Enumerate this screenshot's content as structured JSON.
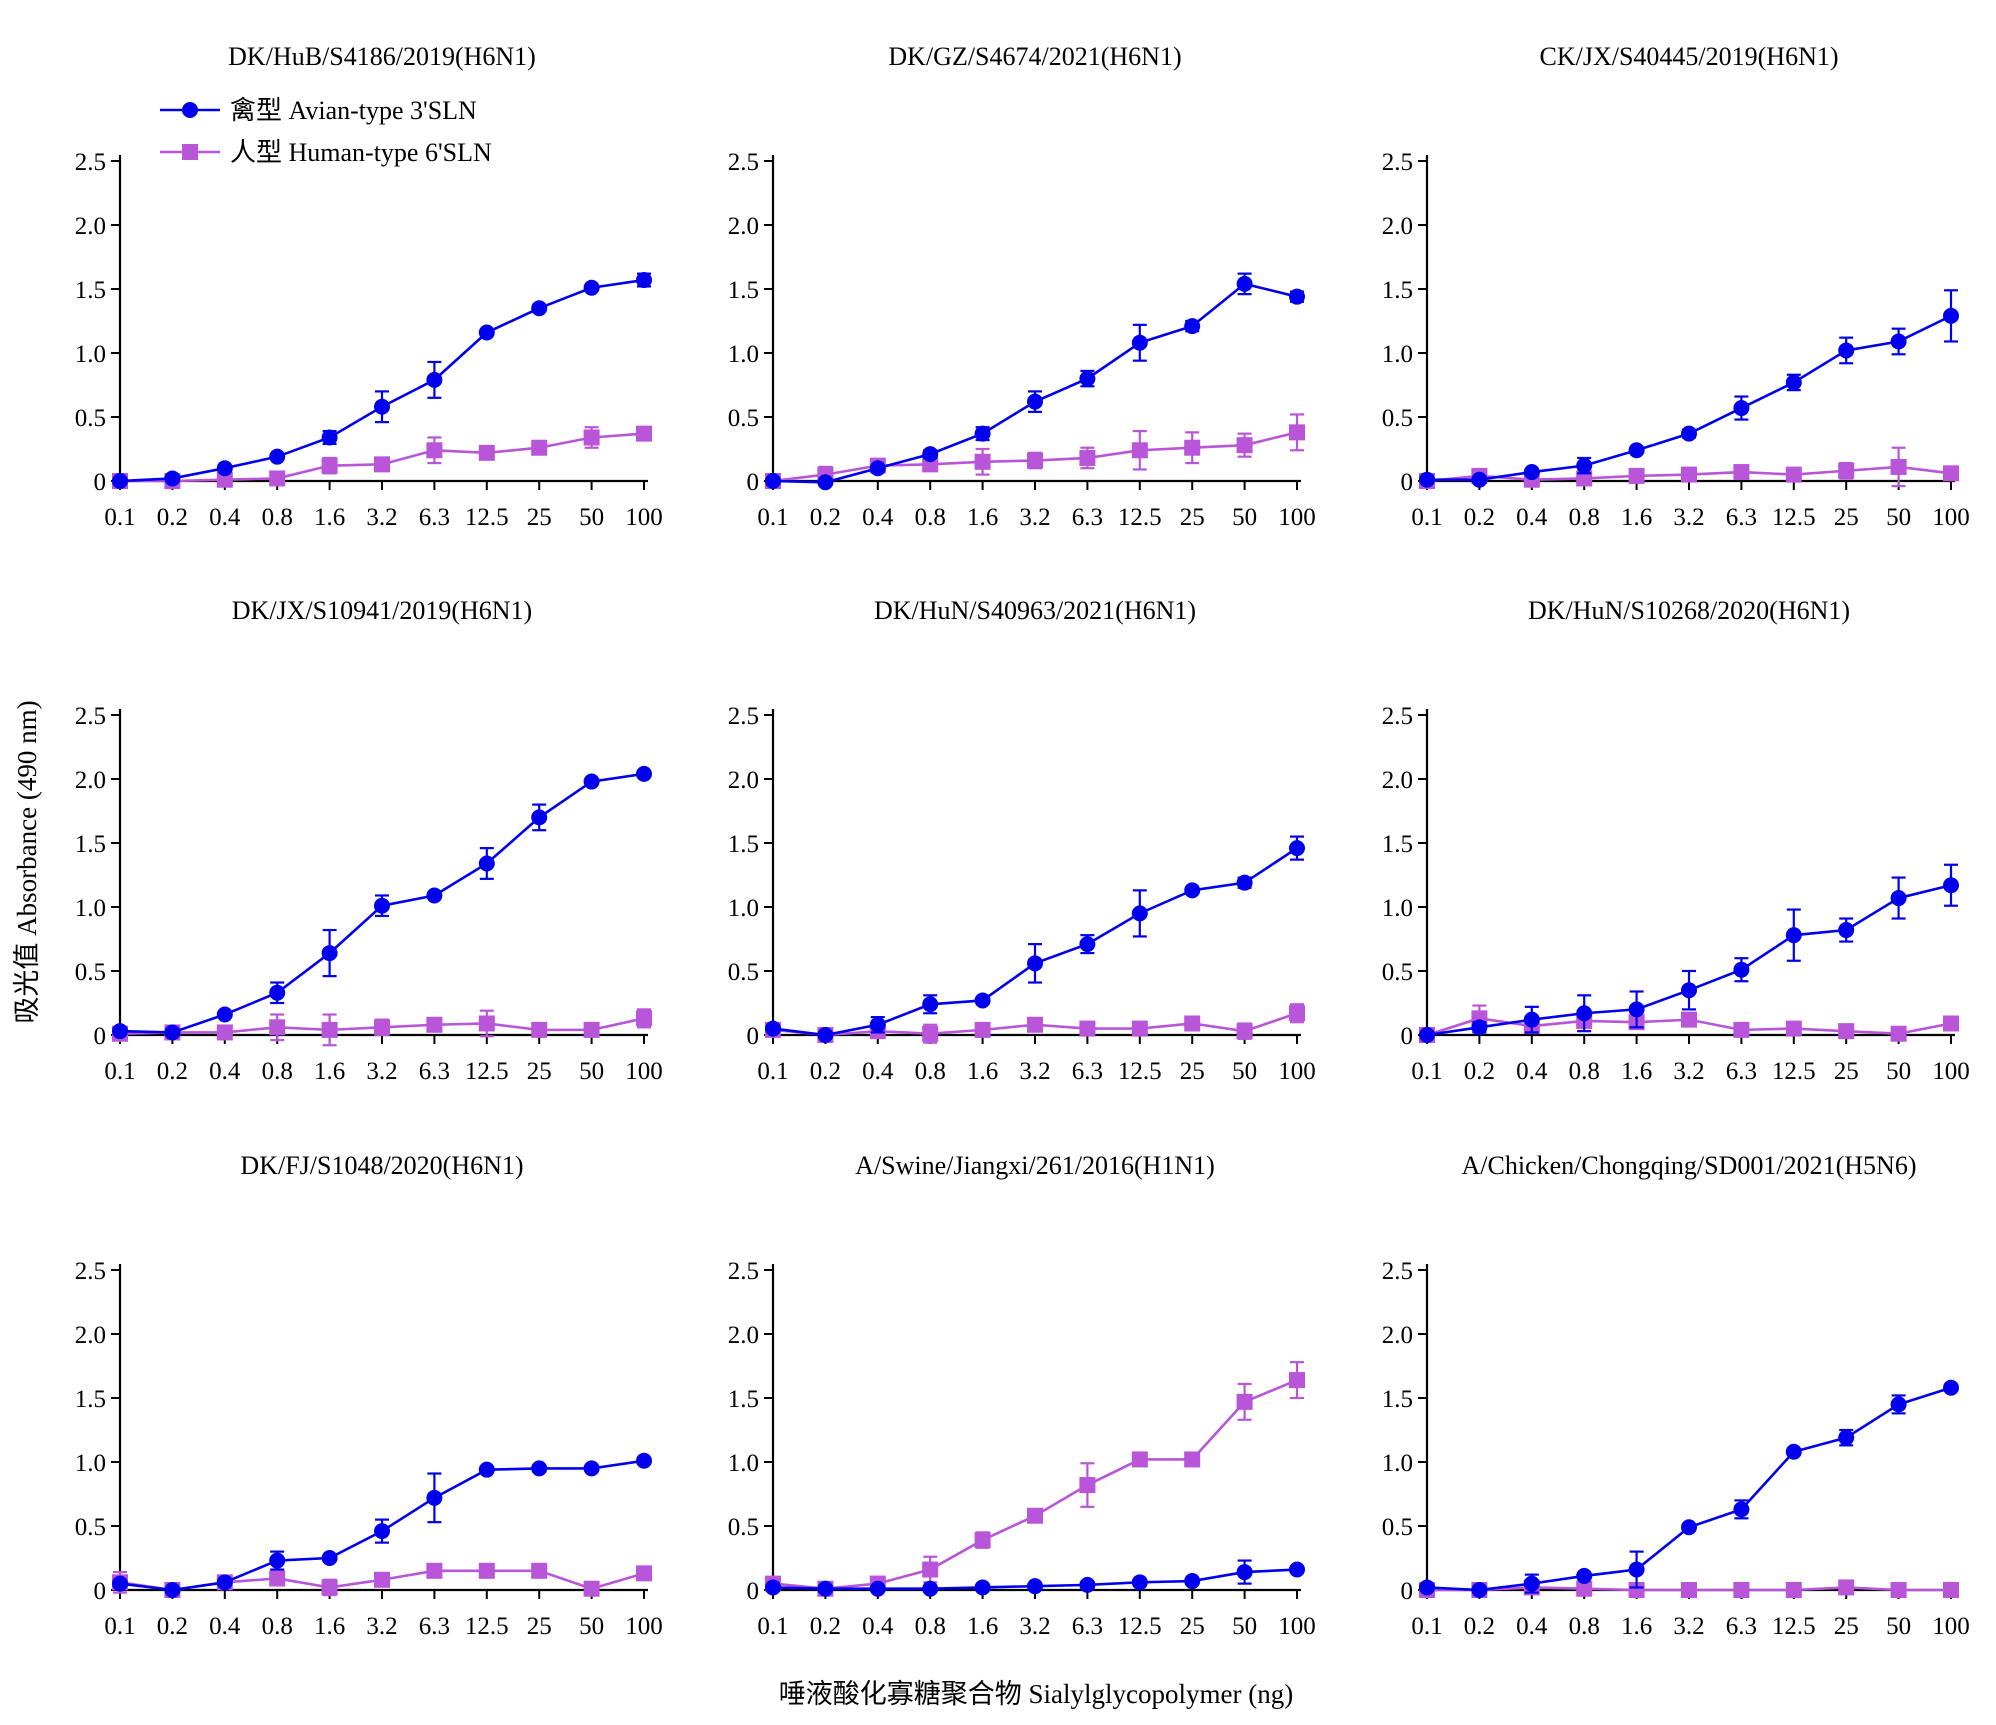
{
  "figure": {
    "ylabel": "吸光值 Absorbance (490 nm)",
    "xlabel": "唾液酸化寡糖聚合物 Sialylglycopolymer (ng)"
  },
  "legend": [
    {
      "label": "禽型 Avian-type 3'SLN",
      "color": "#0000ee",
      "marker": "circle"
    },
    {
      "label": "人型 Human-type 6'SLN",
      "color": "#b855d8",
      "marker": "square"
    }
  ],
  "chart_data": [
    {
      "type": "line",
      "title": "DK/HuB/S4186/2019(H6N1)",
      "categories": [
        "0.1",
        "0.2",
        "0.4",
        "0.8",
        "1.6",
        "3.2",
        "6.3",
        "12.5",
        "25",
        "50",
        "100"
      ],
      "ylim": [
        0,
        2.5
      ],
      "yticks": [
        "0",
        "0.5",
        "1.0",
        "1.5",
        "2.0",
        "2.5"
      ],
      "series": [
        {
          "name": "禽型 Avian-type 3'SLN",
          "values": [
            0.0,
            0.02,
            0.1,
            0.19,
            0.34,
            0.58,
            0.79,
            1.16,
            1.35,
            1.51,
            1.57
          ],
          "err": [
            0.01,
            0.01,
            0.02,
            0.02,
            0.05,
            0.12,
            0.14,
            0.02,
            0.02,
            0.02,
            0.05
          ]
        },
        {
          "name": "人型 Human-type 6'SLN",
          "values": [
            0.0,
            0.0,
            0.01,
            0.02,
            0.12,
            0.13,
            0.24,
            0.22,
            0.26,
            0.34,
            0.37
          ],
          "err": [
            0.01,
            0.01,
            0.01,
            0.02,
            0.06,
            0.04,
            0.1,
            0.03,
            0.03,
            0.08,
            0.03
          ]
        }
      ]
    },
    {
      "type": "line",
      "title": "DK/GZ/S4674/2021(H6N1)",
      "categories": [
        "0.1",
        "0.2",
        "0.4",
        "0.8",
        "1.6",
        "3.2",
        "6.3",
        "12.5",
        "25",
        "50",
        "100"
      ],
      "ylim": [
        0,
        2.5
      ],
      "yticks": [
        "0",
        "0.5",
        "1.0",
        "1.5",
        "2.0",
        "2.5"
      ],
      "series": [
        {
          "name": "禽型 Avian-type 3'SLN",
          "values": [
            0.0,
            -0.01,
            0.1,
            0.21,
            0.37,
            0.62,
            0.8,
            1.08,
            1.21,
            1.54,
            1.44
          ],
          "err": [
            0.01,
            0.01,
            0.02,
            0.03,
            0.05,
            0.08,
            0.06,
            0.14,
            0.04,
            0.08,
            0.04
          ]
        },
        {
          "name": "人型 Human-type 6'SLN",
          "values": [
            0.0,
            0.05,
            0.12,
            0.13,
            0.15,
            0.16,
            0.18,
            0.24,
            0.26,
            0.28,
            0.38
          ],
          "err": [
            0.01,
            0.06,
            0.03,
            0.04,
            0.1,
            0.06,
            0.08,
            0.15,
            0.12,
            0.09,
            0.14
          ]
        }
      ]
    },
    {
      "type": "line",
      "title": "CK/JX/S40445/2019(H6N1)",
      "categories": [
        "0.1",
        "0.2",
        "0.4",
        "0.8",
        "1.6",
        "3.2",
        "6.3",
        "12.5",
        "25",
        "50",
        "100"
      ],
      "ylim": [
        0,
        2.5
      ],
      "yticks": [
        "0",
        "0.5",
        "1.0",
        "1.5",
        "2.0",
        "2.5"
      ],
      "series": [
        {
          "name": "禽型 Avian-type 3'SLN",
          "values": [
            0.01,
            0.01,
            0.07,
            0.12,
            0.24,
            0.37,
            0.57,
            0.77,
            1.02,
            1.09,
            1.29
          ],
          "err": [
            0.01,
            0.01,
            0.02,
            0.06,
            0.02,
            0.03,
            0.09,
            0.06,
            0.1,
            0.1,
            0.2
          ]
        },
        {
          "name": "人型 Human-type 6'SLN",
          "values": [
            0.0,
            0.04,
            0.01,
            0.02,
            0.04,
            0.05,
            0.07,
            0.05,
            0.08,
            0.11,
            0.06
          ],
          "err": [
            0.01,
            0.02,
            0.01,
            0.02,
            0.02,
            0.03,
            0.03,
            0.03,
            0.06,
            0.15,
            0.03
          ]
        }
      ]
    },
    {
      "type": "line",
      "title": "DK/JX/S10941/2019(H6N1)",
      "categories": [
        "0.1",
        "0.2",
        "0.4",
        "0.8",
        "1.6",
        "3.2",
        "6.3",
        "12.5",
        "25",
        "50",
        "100"
      ],
      "ylim": [
        0,
        2.5
      ],
      "yticks": [
        "0",
        "0.5",
        "1.0",
        "1.5",
        "2.0",
        "2.5"
      ],
      "series": [
        {
          "name": "禽型 Avian-type 3'SLN",
          "values": [
            0.03,
            0.02,
            0.16,
            0.33,
            0.64,
            1.01,
            1.09,
            1.34,
            1.7,
            1.98,
            2.04
          ],
          "err": [
            0.02,
            0.01,
            0.02,
            0.08,
            0.18,
            0.08,
            0.02,
            0.12,
            0.1,
            0.02,
            0.02
          ]
        },
        {
          "name": "人型 Human-type 6'SLN",
          "values": [
            0.01,
            0.02,
            0.02,
            0.06,
            0.04,
            0.06,
            0.08,
            0.09,
            0.04,
            0.04,
            0.13
          ],
          "err": [
            0.02,
            0.02,
            0.02,
            0.1,
            0.12,
            0.06,
            0.05,
            0.1,
            0.02,
            0.03,
            0.07
          ]
        }
      ]
    },
    {
      "type": "line",
      "title": "DK/HuN/S40963/2021(H6N1)",
      "categories": [
        "0.1",
        "0.2",
        "0.4",
        "0.8",
        "1.6",
        "3.2",
        "6.3",
        "12.5",
        "25",
        "50",
        "100"
      ],
      "ylim": [
        0,
        2.5
      ],
      "yticks": [
        "0",
        "0.5",
        "1.0",
        "1.5",
        "2.0",
        "2.5"
      ],
      "series": [
        {
          "name": "禽型 Avian-type 3'SLN",
          "values": [
            0.05,
            0.0,
            0.08,
            0.24,
            0.27,
            0.56,
            0.71,
            0.95,
            1.13,
            1.19,
            1.46
          ],
          "err": [
            0.02,
            0.01,
            0.06,
            0.07,
            0.02,
            0.15,
            0.07,
            0.18,
            0.02,
            0.04,
            0.09
          ]
        },
        {
          "name": "人型 Human-type 6'SLN",
          "values": [
            0.04,
            0.0,
            0.03,
            0.01,
            0.04,
            0.08,
            0.05,
            0.05,
            0.09,
            0.03,
            0.17
          ],
          "err": [
            0.02,
            0.01,
            0.02,
            0.07,
            0.03,
            0.03,
            0.02,
            0.02,
            0.03,
            0.06,
            0.07
          ]
        }
      ]
    },
    {
      "type": "line",
      "title": "DK/HuN/S10268/2020(H6N1)",
      "categories": [
        "0.1",
        "0.2",
        "0.4",
        "0.8",
        "1.6",
        "3.2",
        "6.3",
        "12.5",
        "25",
        "50",
        "100"
      ],
      "ylim": [
        0,
        2.5
      ],
      "yticks": [
        "0",
        "0.5",
        "1.0",
        "1.5",
        "2.0",
        "2.5"
      ],
      "series": [
        {
          "name": "禽型 Avian-type 3'SLN",
          "values": [
            0.0,
            0.06,
            0.12,
            0.17,
            0.2,
            0.35,
            0.51,
            0.78,
            0.82,
            1.07,
            1.17
          ],
          "err": [
            0.01,
            0.04,
            0.1,
            0.14,
            0.14,
            0.15,
            0.09,
            0.2,
            0.09,
            0.16,
            0.16
          ]
        },
        {
          "name": "人型 Human-type 6'SLN",
          "values": [
            0.0,
            0.13,
            0.07,
            0.11,
            0.1,
            0.12,
            0.04,
            0.05,
            0.03,
            0.01,
            0.09
          ],
          "err": [
            0.01,
            0.1,
            0.05,
            0.04,
            0.05,
            0.04,
            0.03,
            0.03,
            0.03,
            0.03,
            0.04
          ]
        }
      ]
    },
    {
      "type": "line",
      "title": "DK/FJ/S1048/2020(H6N1)",
      "categories": [
        "0.1",
        "0.2",
        "0.4",
        "0.8",
        "1.6",
        "3.2",
        "6.3",
        "12.5",
        "25",
        "50",
        "100"
      ],
      "ylim": [
        0,
        2.5
      ],
      "yticks": [
        "0",
        "0.5",
        "1.0",
        "1.5",
        "2.0",
        "2.5"
      ],
      "series": [
        {
          "name": "禽型 Avian-type 3'SLN",
          "values": [
            0.05,
            0.0,
            0.06,
            0.23,
            0.25,
            0.46,
            0.72,
            0.94,
            0.95,
            0.95,
            1.01
          ],
          "err": [
            0.01,
            0.01,
            0.02,
            0.07,
            0.02,
            0.09,
            0.19,
            0.02,
            0.02,
            0.02,
            0.02
          ]
        },
        {
          "name": "人型 Human-type 6'SLN",
          "values": [
            0.06,
            0.0,
            0.06,
            0.09,
            0.02,
            0.08,
            0.15,
            0.15,
            0.15,
            0.01,
            0.13
          ],
          "err": [
            0.08,
            0.01,
            0.02,
            0.04,
            0.06,
            0.03,
            0.03,
            0.03,
            0.03,
            0.02,
            0.04
          ]
        }
      ]
    },
    {
      "type": "line",
      "title": "A/Swine/Jiangxi/261/2016(H1N1)",
      "categories": [
        "0.1",
        "0.2",
        "0.4",
        "0.8",
        "1.6",
        "3.2",
        "6.3",
        "12.5",
        "25",
        "50",
        "100"
      ],
      "ylim": [
        0,
        2.5
      ],
      "yticks": [
        "0",
        "0.5",
        "1.0",
        "1.5",
        "2.0",
        "2.5"
      ],
      "series": [
        {
          "name": "禽型 Avian-type 3'SLN",
          "values": [
            0.02,
            0.01,
            0.01,
            0.01,
            0.02,
            0.03,
            0.04,
            0.06,
            0.07,
            0.14,
            0.16
          ],
          "err": [
            0.01,
            0.01,
            0.01,
            0.01,
            0.01,
            0.01,
            0.01,
            0.02,
            0.02,
            0.09,
            0.02
          ]
        },
        {
          "name": "人型 Human-type 6'SLN",
          "values": [
            0.05,
            0.01,
            0.05,
            0.16,
            0.39,
            0.58,
            0.82,
            1.02,
            1.02,
            1.47,
            1.64
          ],
          "err": [
            0.02,
            0.02,
            0.02,
            0.1,
            0.06,
            0.04,
            0.17,
            0.02,
            0.02,
            0.14,
            0.14
          ]
        }
      ]
    },
    {
      "type": "line",
      "title": "A/Chicken/Chongqing/SD001/2021(H5N6)",
      "categories": [
        "0.1",
        "0.2",
        "0.4",
        "0.8",
        "1.6",
        "3.2",
        "6.3",
        "12.5",
        "25",
        "50",
        "100"
      ],
      "ylim": [
        0,
        2.5
      ],
      "yticks": [
        "0",
        "0.5",
        "1.0",
        "1.5",
        "2.0",
        "2.5"
      ],
      "series": [
        {
          "name": "禽型 Avian-type 3'SLN",
          "values": [
            0.02,
            0.0,
            0.05,
            0.11,
            0.16,
            0.49,
            0.63,
            1.08,
            1.19,
            1.45,
            1.58
          ],
          "err": [
            0.01,
            0.01,
            0.07,
            0.02,
            0.14,
            0.02,
            0.07,
            0.02,
            0.06,
            0.07,
            0.02
          ]
        },
        {
          "name": "人型 Human-type 6'SLN",
          "values": [
            0.0,
            0.0,
            0.02,
            0.01,
            0.0,
            0.0,
            0.0,
            0.0,
            0.02,
            0.0,
            0.0
          ],
          "err": [
            0.01,
            0.01,
            0.01,
            0.01,
            0.01,
            0.01,
            0.01,
            0.01,
            0.01,
            0.01,
            0.01
          ]
        }
      ]
    }
  ]
}
